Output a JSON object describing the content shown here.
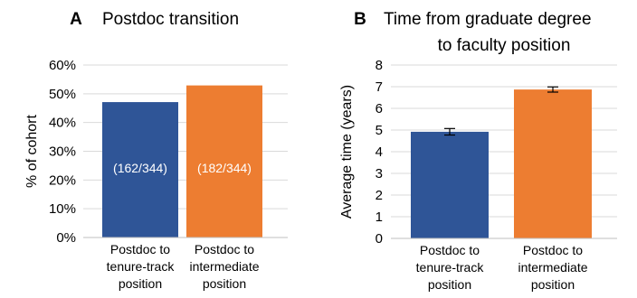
{
  "colors": {
    "blue": "#2f5597",
    "orange": "#ed7d31",
    "grid": "#d9d9d9",
    "axis": "#bfbfbf",
    "text": "#000000",
    "data_label": "#ffffff"
  },
  "chart_data": [
    {
      "type": "bar",
      "panel_letter": "A",
      "title": "Postdoc transition",
      "ylabel": "% of cohort",
      "xlabel": "",
      "ylim": [
        0,
        60
      ],
      "yticks": [
        0,
        10,
        20,
        30,
        40,
        50,
        60
      ],
      "ytick_labels": [
        "0%",
        "10%",
        "20%",
        "30%",
        "40%",
        "50%",
        "60%"
      ],
      "grid": true,
      "categories": [
        [
          "Postdoc to",
          "tenure-track",
          "position"
        ],
        [
          "Postdoc to",
          "intermediate",
          "position"
        ]
      ],
      "values": [
        47.1,
        52.9
      ],
      "data_labels": [
        "(162/344)",
        "(182/344)"
      ],
      "bar_colors": [
        "#2f5597",
        "#ed7d31"
      ]
    },
    {
      "type": "bar",
      "panel_letter": "B",
      "title_lines": [
        "Time from graduate degree",
        "to faculty position"
      ],
      "ylabel": "Average time (years)",
      "xlabel": "",
      "ylim": [
        0,
        8
      ],
      "yticks": [
        0,
        1,
        2,
        3,
        4,
        5,
        6,
        7,
        8
      ],
      "ytick_labels": [
        "0",
        "1",
        "2",
        "3",
        "4",
        "5",
        "6",
        "7",
        "8"
      ],
      "grid": true,
      "categories": [
        [
          "Postdoc to",
          "tenure-track",
          "position"
        ],
        [
          "Postdoc to",
          "intermediate",
          "position"
        ]
      ],
      "values": [
        4.92,
        6.87
      ],
      "errors": [
        0.15,
        0.12
      ],
      "bar_colors": [
        "#2f5597",
        "#ed7d31"
      ]
    }
  ]
}
